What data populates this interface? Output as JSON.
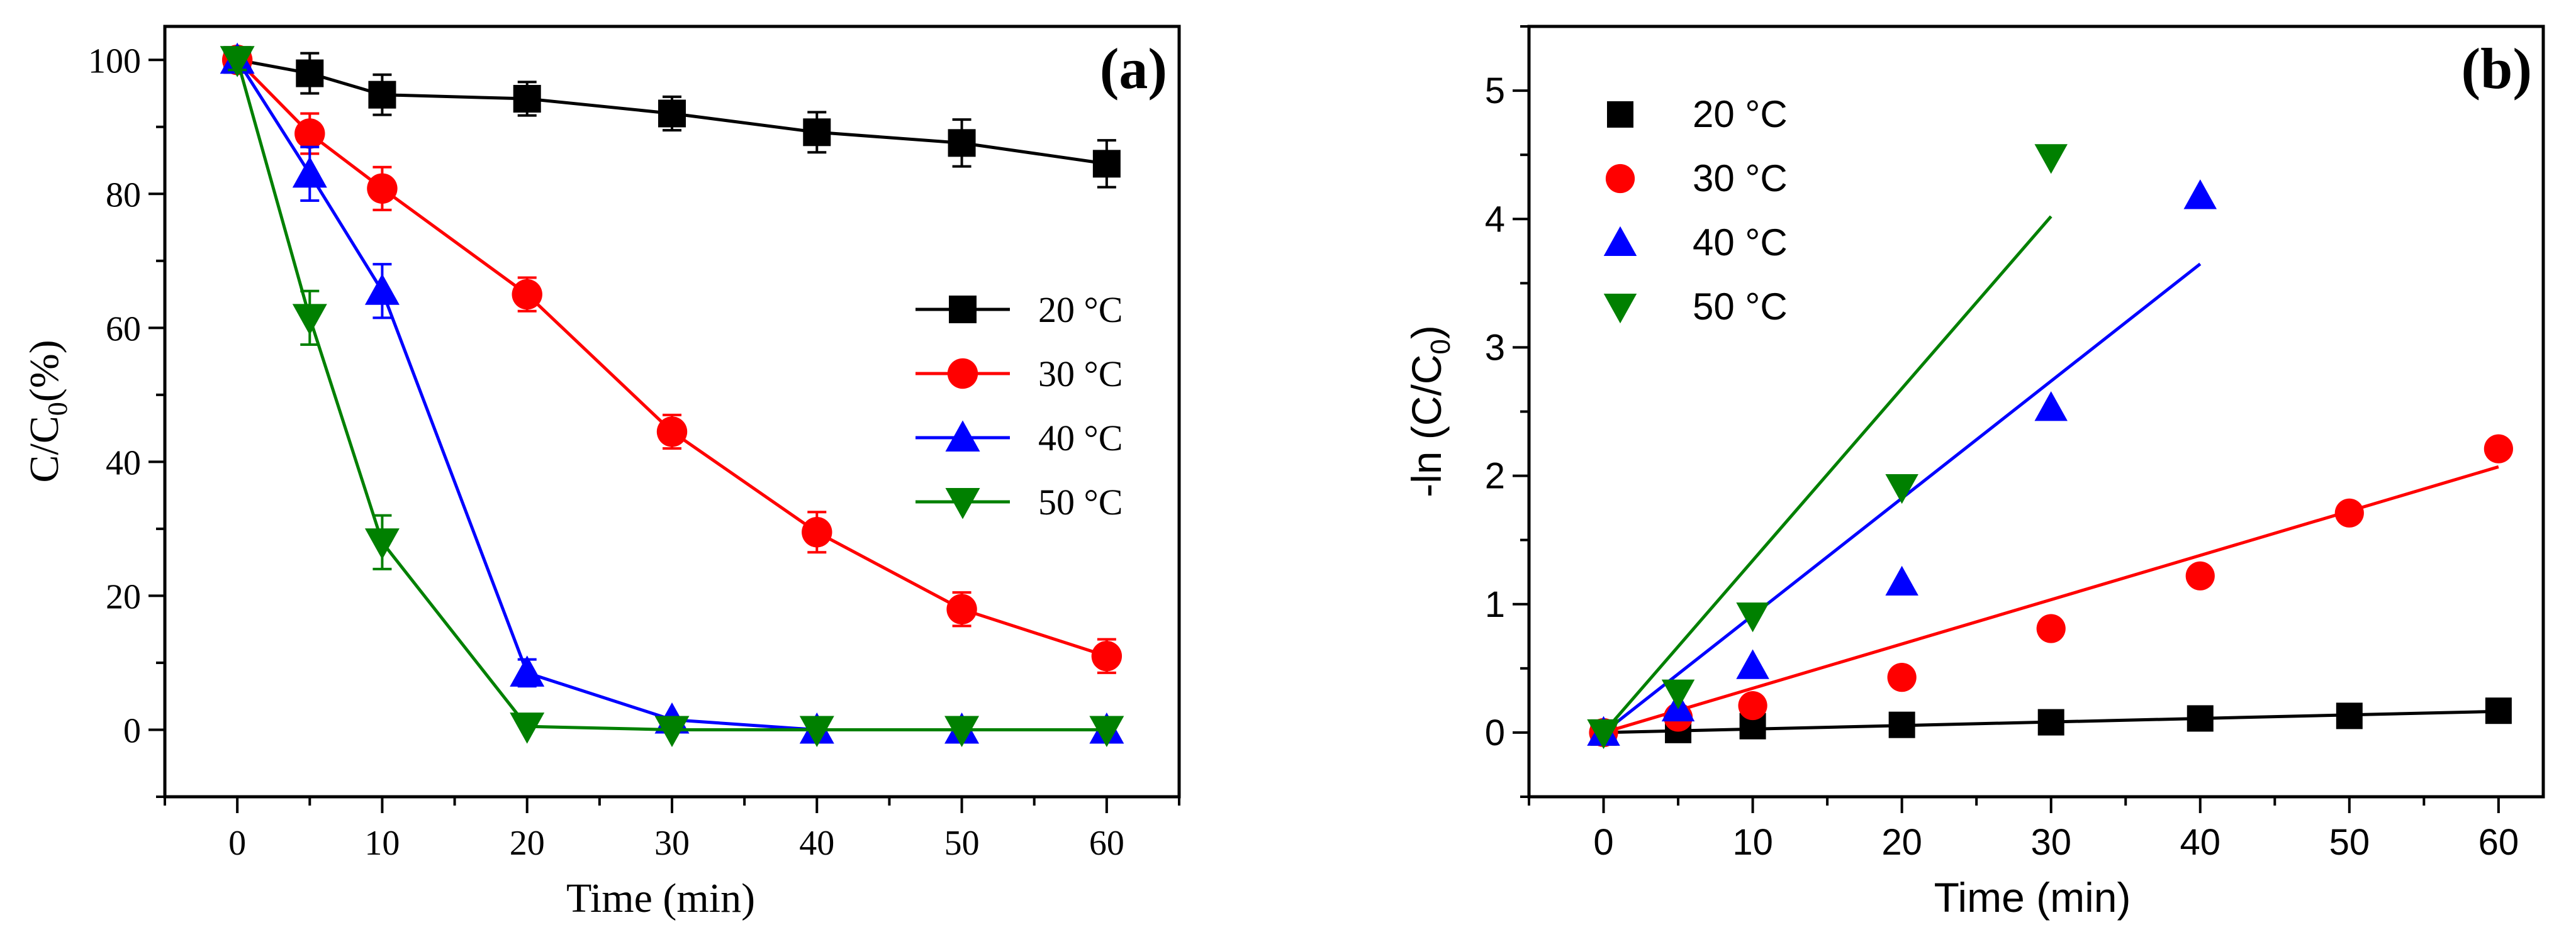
{
  "chart_data": [
    {
      "panel": "a",
      "type": "line",
      "panel_label": "(a)",
      "xlabel": "Time (min)",
      "ylabel_main": "C/C",
      "ylabel_sub": "0",
      "ylabel_tail": "(%)",
      "xlim": [
        -5,
        65
      ],
      "ylim": [
        -10,
        105
      ],
      "xticks": [
        0,
        10,
        20,
        30,
        40,
        50,
        60
      ],
      "yticks": [
        0,
        20,
        40,
        60,
        80,
        100
      ],
      "grid": false,
      "legend_position": "right",
      "series": [
        {
          "name": "20 °C",
          "legend_num": "20",
          "legend_unit": "°C",
          "color": "#000000",
          "marker": "square",
          "x": [
            0,
            5,
            10,
            20,
            30,
            40,
            50,
            60
          ],
          "y": [
            100,
            98,
            94.8,
            94.2,
            92,
            89.2,
            87.6,
            84.5
          ],
          "err": [
            1.5,
            3,
            3,
            2.5,
            2.5,
            3,
            3.5,
            3.5
          ]
        },
        {
          "name": "30 °C",
          "legend_num": "30",
          "legend_unit": "°C",
          "color": "#ff0000",
          "marker": "circle",
          "x": [
            0,
            5,
            10,
            20,
            30,
            40,
            50,
            60
          ],
          "y": [
            100,
            89,
            80.8,
            65,
            44.5,
            29.5,
            18,
            11
          ],
          "err": [
            1.5,
            3,
            3.2,
            2.5,
            2.5,
            3,
            2.5,
            2.5
          ]
        },
        {
          "name": "40 °C",
          "legend_num": "40",
          "legend_unit": "°C",
          "color": "#0000ff",
          "marker": "triangle-up",
          "x": [
            0,
            5,
            10,
            20,
            30,
            40,
            50,
            60
          ],
          "y": [
            100,
            83,
            65.5,
            8.5,
            1.5,
            0,
            0,
            0
          ],
          "err": [
            1.5,
            4,
            4,
            2,
            0,
            0,
            0,
            0
          ]
        },
        {
          "name": "50 °C",
          "legend_num": "50",
          "legend_unit": "°C",
          "color": "#008000",
          "marker": "triangle-down",
          "x": [
            0,
            5,
            10,
            20,
            30,
            40,
            50,
            60
          ],
          "y": [
            100,
            61.5,
            28,
            0.5,
            0,
            0,
            0,
            0
          ],
          "err": [
            1.5,
            4,
            4,
            0,
            0,
            0,
            0,
            0
          ]
        }
      ]
    },
    {
      "panel": "b",
      "type": "scatter",
      "panel_label": "(b)",
      "xlabel": "Time (min)",
      "ylabel_main": "-ln (C/C",
      "ylabel_sub": "0",
      "ylabel_tail": ")",
      "xlim": [
        -5,
        63
      ],
      "ylim": [
        -0.5,
        5.5
      ],
      "xticks": [
        0,
        10,
        20,
        30,
        40,
        50,
        60
      ],
      "yticks": [
        0,
        1,
        2,
        3,
        4,
        5
      ],
      "grid": false,
      "legend_position": "top-left",
      "series": [
        {
          "name": "20 °C",
          "legend_num": "20",
          "legend_unit": "°C",
          "color": "#000000",
          "marker": "square",
          "x": [
            0,
            5,
            10,
            20,
            30,
            40,
            50,
            60
          ],
          "y": [
            0,
            0.02,
            0.05,
            0.06,
            0.08,
            0.11,
            0.13,
            0.17
          ],
          "fit": {
            "x": [
              0,
              60
            ],
            "y": [
              0,
              0.165
            ]
          }
        },
        {
          "name": "30 °C",
          "legend_num": "30",
          "legend_unit": "°C",
          "color": "#ff0000",
          "marker": "circle",
          "x": [
            0,
            5,
            10,
            20,
            30,
            40,
            50,
            60
          ],
          "y": [
            0,
            0.12,
            0.21,
            0.43,
            0.81,
            1.22,
            1.71,
            2.21
          ],
          "fit": {
            "x": [
              0,
              60
            ],
            "y": [
              0,
              2.07
            ]
          }
        },
        {
          "name": "40 °C",
          "legend_num": "40",
          "legend_unit": "°C",
          "color": "#0000ff",
          "marker": "triangle-up",
          "x": [
            0,
            5,
            10,
            20,
            30,
            40
          ],
          "y": [
            0,
            0.19,
            0.52,
            1.17,
            2.53,
            4.18
          ],
          "fit": {
            "x": [
              0,
              40
            ],
            "y": [
              0,
              3.65
            ]
          }
        },
        {
          "name": "50 °C",
          "legend_num": "50",
          "legend_unit": "°C",
          "color": "#008000",
          "marker": "triangle-down",
          "x": [
            0,
            5,
            10,
            20,
            30
          ],
          "y": [
            0,
            0.31,
            0.91,
            1.91,
            4.48
          ],
          "fit": {
            "x": [
              0,
              30
            ],
            "y": [
              0,
              4.02
            ]
          }
        }
      ]
    }
  ]
}
